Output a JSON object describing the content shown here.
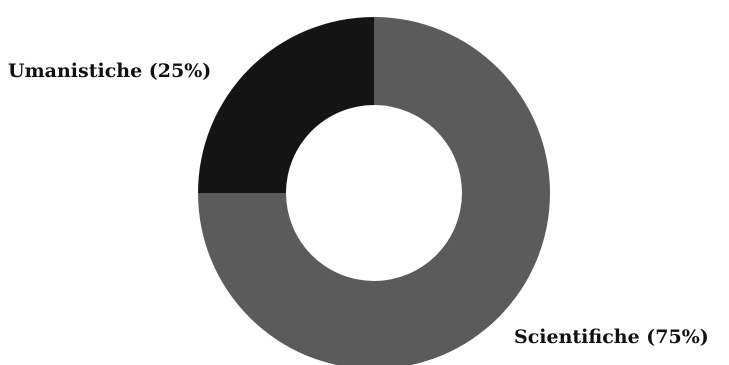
{
  "chart_data": {
    "type": "pie",
    "donut": true,
    "title": "",
    "legend": "none",
    "slices": [
      {
        "label": "Scientifiche (75%)",
        "value": 75,
        "color": "#5b5b5b"
      },
      {
        "label": "Umanistiche (25%)",
        "value": 25,
        "color": "#141414"
      }
    ]
  }
}
